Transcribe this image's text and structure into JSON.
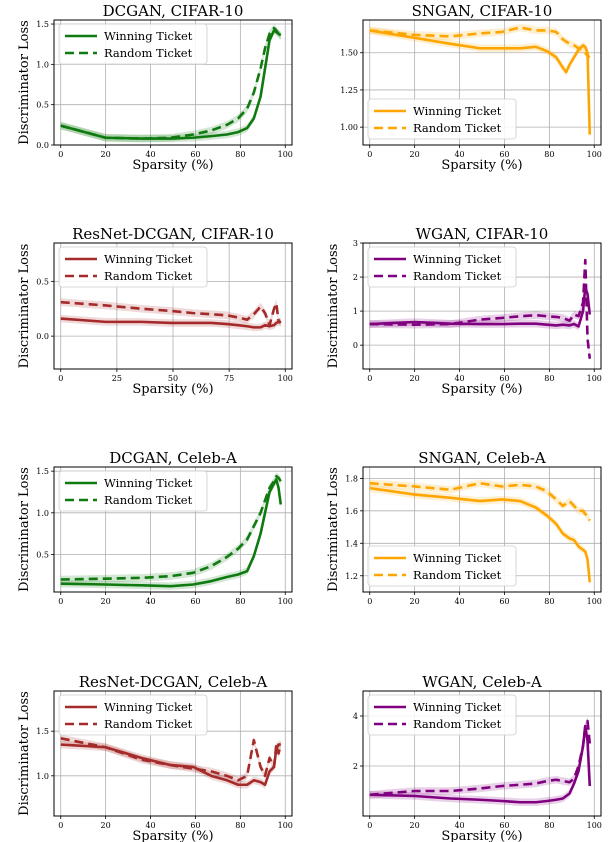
{
  "colors": {
    "green": "#0f7a0f",
    "orange": "#ffa500",
    "brown": "#a52a2a",
    "purple": "#800080",
    "grid": "#b0b0b0"
  },
  "legend_labels": [
    "Winning Ticket",
    "Random Ticket"
  ],
  "chart_data": [
    {
      "type": "line",
      "title": "DCGAN, CIFAR-10",
      "xlabel": "Sparsity (%)",
      "ylabel": "Discriminator Loss",
      "color": "green",
      "xlim": [
        -3,
        103
      ],
      "ylim": [
        0,
        1.55
      ],
      "xticks": [
        0,
        20,
        40,
        60,
        80,
        100
      ],
      "yticks": [
        0.0,
        0.5,
        1.0,
        1.5
      ],
      "ytick_labels": [
        "0.0",
        "0.5",
        "1.0",
        "1.5"
      ],
      "legend_loc": "top-left",
      "series": [
        {
          "name": "Winning Ticket",
          "x": [
            0,
            20,
            36,
            49,
            59,
            67,
            74,
            79,
            83,
            86,
            89,
            91,
            93,
            95,
            96,
            97,
            98
          ],
          "y": [
            0.24,
            0.09,
            0.08,
            0.08,
            0.09,
            0.11,
            0.13,
            0.16,
            0.21,
            0.33,
            0.6,
            0.95,
            1.3,
            1.42,
            1.4,
            1.38,
            1.36
          ]
        },
        {
          "name": "Random Ticket",
          "x": [
            0,
            20,
            36,
            49,
            59,
            67,
            74,
            79,
            83,
            86,
            89,
            91,
            93,
            95,
            96,
            97,
            98
          ],
          "y": [
            0.24,
            0.09,
            0.08,
            0.09,
            0.13,
            0.18,
            0.25,
            0.33,
            0.45,
            0.65,
            0.95,
            1.2,
            1.38,
            1.45,
            1.42,
            1.38,
            1.35
          ]
        }
      ]
    },
    {
      "type": "line",
      "title": "SNGAN, CIFAR-10",
      "xlabel": "Sparsity (%)",
      "ylabel": "",
      "color": "orange",
      "xlim": [
        -3,
        103
      ],
      "ylim": [
        0.88,
        1.72
      ],
      "xticks": [
        0,
        20,
        40,
        60,
        80,
        100
      ],
      "yticks": [
        1.0,
        1.25,
        1.5
      ],
      "ytick_labels": [
        "1.00",
        "1.25",
        "1.50"
      ],
      "legend_loc": "bottom-left",
      "series": [
        {
          "name": "Winning Ticket",
          "x": [
            0,
            20,
            36,
            49,
            59,
            67,
            74,
            79,
            83,
            86,
            87.5,
            89,
            91,
            93,
            95,
            96,
            97,
            98
          ],
          "y": [
            1.65,
            1.6,
            1.56,
            1.53,
            1.53,
            1.53,
            1.54,
            1.51,
            1.47,
            1.4,
            1.37,
            1.42,
            1.47,
            1.52,
            1.55,
            1.54,
            1.5,
            0.95
          ]
        },
        {
          "name": "Random Ticket",
          "x": [
            0,
            20,
            36,
            49,
            59,
            67,
            74,
            79,
            83,
            86,
            89,
            91,
            93,
            95,
            96,
            97,
            98
          ],
          "y": [
            1.65,
            1.62,
            1.61,
            1.63,
            1.64,
            1.67,
            1.65,
            1.65,
            1.64,
            1.59,
            1.56,
            1.55,
            1.53,
            1.52,
            1.5,
            1.48,
            1.47
          ]
        }
      ]
    },
    {
      "type": "line",
      "title": "ResNet-DCGAN, CIFAR-10",
      "xlabel": "Sparsity (%)",
      "ylabel": "Discriminator Loss",
      "color": "brown",
      "xlim": [
        -3,
        103
      ],
      "ylim": [
        -0.3,
        0.85
      ],
      "xticks": [
        0,
        25,
        50,
        75,
        100
      ],
      "yticks": [
        0.0,
        0.5
      ],
      "ytick_labels": [
        "0.0",
        "0.5"
      ],
      "legend_loc": "top-left",
      "series": [
        {
          "name": "Winning Ticket",
          "x": [
            0,
            20,
            36,
            49,
            59,
            67,
            74,
            79,
            83,
            86,
            89,
            91,
            93,
            95,
            96,
            97,
            98
          ],
          "y": [
            0.16,
            0.13,
            0.13,
            0.12,
            0.12,
            0.12,
            0.11,
            0.1,
            0.09,
            0.08,
            0.08,
            0.1,
            0.09,
            0.1,
            0.12,
            0.13,
            0.13
          ]
        },
        {
          "name": "Random Ticket",
          "x": [
            0,
            20,
            36,
            49,
            59,
            67,
            74,
            79,
            83,
            86,
            89,
            91,
            93,
            95,
            96,
            97,
            98
          ],
          "y": [
            0.31,
            0.28,
            0.25,
            0.23,
            0.21,
            0.2,
            0.19,
            0.17,
            0.15,
            0.2,
            0.27,
            0.21,
            0.1,
            0.25,
            0.3,
            0.14,
            0.12
          ]
        }
      ]
    },
    {
      "type": "line",
      "title": "WGAN, CIFAR-10",
      "xlabel": "Sparsity (%)",
      "ylabel": "Discriminator Loss",
      "color": "purple",
      "xlim": [
        -3,
        103
      ],
      "ylim": [
        -0.7,
        3.0
      ],
      "xticks": [
        0,
        20,
        40,
        60,
        80,
        100
      ],
      "yticks": [
        0,
        1,
        2,
        3
      ],
      "ytick_labels": [
        "0",
        "1",
        "2",
        "3"
      ],
      "legend_loc": "top-left",
      "series": [
        {
          "name": "Winning Ticket",
          "x": [
            0,
            20,
            36,
            49,
            59,
            67,
            74,
            79,
            83,
            86,
            89,
            91,
            93,
            95,
            96,
            97,
            98
          ],
          "y": [
            0.62,
            0.68,
            0.63,
            0.62,
            0.62,
            0.63,
            0.63,
            0.6,
            0.58,
            0.6,
            0.58,
            0.62,
            0.55,
            1.0,
            1.7,
            1.5,
            0.9
          ]
        },
        {
          "name": "Random Ticket",
          "x": [
            0,
            20,
            36,
            49,
            59,
            67,
            74,
            79,
            83,
            86,
            89,
            91,
            93,
            95,
            96,
            97,
            98
          ],
          "y": [
            0.62,
            0.6,
            0.62,
            0.75,
            0.8,
            0.85,
            0.88,
            0.85,
            0.83,
            0.8,
            0.72,
            0.9,
            0.85,
            1.25,
            2.5,
            0.2,
            -0.4
          ]
        }
      ]
    },
    {
      "type": "line",
      "title": "DCGAN, Celeb-A",
      "xlabel": "",
      "ylabel": "Discriminator Loss",
      "color": "green",
      "xlim": [
        -3,
        103
      ],
      "ylim": [
        0.05,
        1.55
      ],
      "xticks": [
        0,
        20,
        40,
        60,
        80,
        100
      ],
      "yticks": [
        0.5,
        1.0,
        1.5
      ],
      "ytick_labels": [
        "0.5",
        "1.0",
        "1.5"
      ],
      "legend_loc": "top-left",
      "series": [
        {
          "name": "Winning Ticket",
          "x": [
            0,
            20,
            36,
            49,
            59,
            67,
            74,
            79,
            83,
            86,
            89,
            91,
            93,
            95,
            96,
            97,
            98
          ],
          "y": [
            0.15,
            0.14,
            0.13,
            0.12,
            0.14,
            0.18,
            0.23,
            0.26,
            0.3,
            0.48,
            0.75,
            1.0,
            1.25,
            1.35,
            1.4,
            1.3,
            1.1
          ]
        },
        {
          "name": "Random Ticket",
          "x": [
            0,
            20,
            36,
            49,
            59,
            67,
            74,
            79,
            83,
            86,
            89,
            91,
            93,
            95,
            96,
            97,
            98
          ],
          "y": [
            0.2,
            0.21,
            0.22,
            0.24,
            0.28,
            0.36,
            0.47,
            0.57,
            0.68,
            0.84,
            1.0,
            1.15,
            1.3,
            1.38,
            1.44,
            1.42,
            1.38
          ]
        }
      ]
    },
    {
      "type": "line",
      "title": "SNGAN, Celeb-A",
      "xlabel": "",
      "ylabel": "Discriminator Loss",
      "color": "orange",
      "xlim": [
        -3,
        103
      ],
      "ylim": [
        1.1,
        1.87
      ],
      "xticks": [
        0,
        20,
        40,
        60,
        80,
        100
      ],
      "yticks": [
        1.2,
        1.4,
        1.6,
        1.8
      ],
      "ytick_labels": [
        "1.2",
        "1.4",
        "1.6",
        "1.8"
      ],
      "legend_loc": "bottom-left",
      "series": [
        {
          "name": "Winning Ticket",
          "x": [
            0,
            20,
            36,
            49,
            59,
            67,
            74,
            79,
            83,
            86,
            89,
            91,
            93,
            95,
            96,
            97,
            98
          ],
          "y": [
            1.74,
            1.7,
            1.68,
            1.66,
            1.67,
            1.66,
            1.62,
            1.57,
            1.52,
            1.46,
            1.43,
            1.42,
            1.38,
            1.36,
            1.35,
            1.3,
            1.16
          ]
        },
        {
          "name": "Random Ticket",
          "x": [
            0,
            20,
            36,
            49,
            59,
            67,
            74,
            79,
            83,
            86,
            89,
            91,
            93,
            95,
            96,
            97,
            98
          ],
          "y": [
            1.77,
            1.75,
            1.73,
            1.77,
            1.75,
            1.76,
            1.75,
            1.72,
            1.67,
            1.63,
            1.66,
            1.63,
            1.6,
            1.6,
            1.58,
            1.57,
            1.54
          ]
        }
      ]
    },
    {
      "type": "line",
      "title": "ResNet-DCGAN, Celeb-A",
      "xlabel": "Sparsity (%)",
      "ylabel": "Discriminator Loss",
      "color": "brown",
      "xlim": [
        -3,
        103
      ],
      "ylim": [
        0.55,
        1.95
      ],
      "xticks": [
        0,
        20,
        40,
        60,
        80,
        100
      ],
      "yticks": [
        1.0,
        1.5
      ],
      "ytick_labels": [
        "1.0",
        "1.5"
      ],
      "legend_loc": "top-left",
      "series": [
        {
          "name": "Winning Ticket",
          "x": [
            0,
            20,
            36,
            49,
            59,
            67,
            74,
            79,
            83,
            86,
            89,
            91,
            93,
            95,
            96,
            97,
            98
          ],
          "y": [
            1.35,
            1.32,
            1.2,
            1.12,
            1.1,
            1.0,
            0.95,
            0.9,
            0.9,
            0.95,
            0.93,
            0.9,
            1.05,
            1.1,
            1.3,
            1.35,
            1.35
          ]
        },
        {
          "name": "Random Ticket",
          "x": [
            0,
            20,
            36,
            49,
            59,
            67,
            74,
            79,
            83,
            86,
            89,
            91,
            93,
            95,
            96,
            97,
            98
          ],
          "y": [
            1.42,
            1.32,
            1.18,
            1.12,
            1.08,
            1.05,
            1.0,
            0.95,
            1.0,
            1.4,
            1.1,
            1.0,
            1.2,
            1.1,
            1.35,
            1.25,
            1.35
          ]
        }
      ]
    },
    {
      "type": "line",
      "title": "WGAN, Celeb-A",
      "xlabel": "Sparsity (%)",
      "ylabel": "",
      "color": "purple",
      "xlim": [
        -3,
        103
      ],
      "ylim": [
        0.0,
        5.0
      ],
      "xticks": [
        0,
        20,
        40,
        60,
        80,
        100
      ],
      "yticks": [
        2,
        4
      ],
      "ytick_labels": [
        "2",
        "4"
      ],
      "legend_loc": "top-left",
      "series": [
        {
          "name": "Winning Ticket",
          "x": [
            0,
            20,
            36,
            49,
            59,
            67,
            74,
            79,
            83,
            86,
            89,
            91,
            93,
            95,
            96,
            97,
            98
          ],
          "y": [
            0.85,
            0.8,
            0.7,
            0.65,
            0.6,
            0.55,
            0.55,
            0.6,
            0.65,
            0.7,
            0.9,
            1.3,
            1.8,
            2.8,
            3.6,
            3.0,
            1.2
          ]
        },
        {
          "name": "Random Ticket",
          "x": [
            0,
            20,
            36,
            49,
            59,
            67,
            74,
            79,
            83,
            86,
            89,
            91,
            93,
            95,
            96,
            97,
            98
          ],
          "y": [
            0.85,
            1.0,
            1.0,
            1.1,
            1.2,
            1.25,
            1.3,
            1.4,
            1.45,
            1.4,
            1.35,
            1.5,
            2.0,
            2.8,
            3.6,
            3.8,
            2.9
          ]
        }
      ]
    }
  ]
}
